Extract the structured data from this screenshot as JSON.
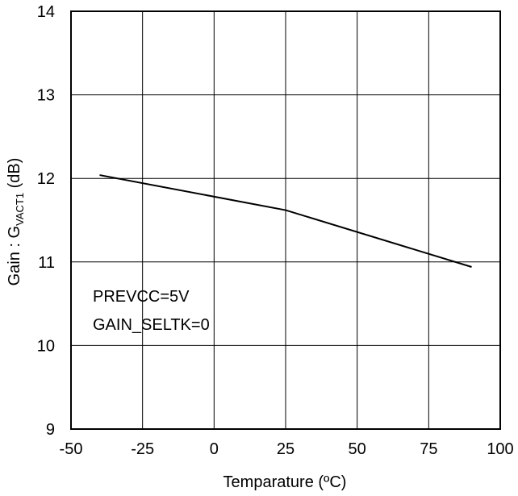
{
  "chart_data": {
    "type": "line",
    "title": "",
    "xlabel": "Temparature (ºC)",
    "ylabel_main": "Gain : G",
    "ylabel_sub": "VACT1",
    "ylabel_unit": " (dB)",
    "xlim": [
      -50,
      100
    ],
    "ylim": [
      9,
      14
    ],
    "x_ticks": [
      -50,
      -25,
      0,
      25,
      50,
      75,
      100
    ],
    "y_ticks": [
      9,
      10,
      11,
      12,
      13,
      14
    ],
    "grid": true,
    "annotations": [
      "PREVCC=5V",
      "GAIN_SELTK=0"
    ],
    "series": [
      {
        "x": [
          -40,
          25,
          90
        ],
        "y": [
          12.04,
          11.62,
          10.94
        ]
      }
    ],
    "line_color": "#000000"
  }
}
